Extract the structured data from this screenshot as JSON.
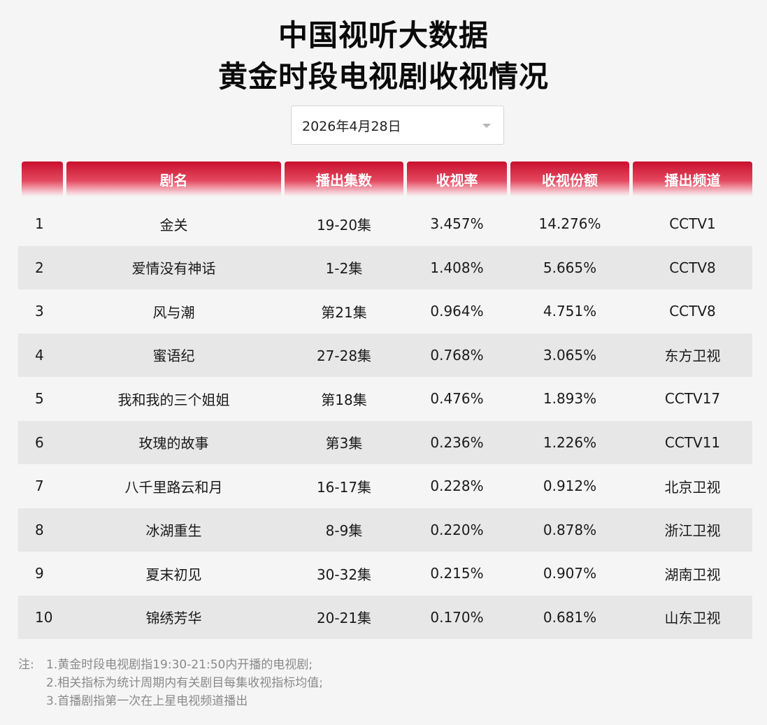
{
  "header": {
    "title_line1": "中国视听大数据",
    "title_line2": "黄金时段电视剧收视情况"
  },
  "date_select": {
    "value": "2026年4月28日"
  },
  "table": {
    "columns": [
      "",
      "剧名",
      "播出集数",
      "收视率",
      "收视份额",
      "播出频道"
    ],
    "rows": [
      {
        "rank": "1",
        "name": "金关",
        "episodes": "19-20集",
        "rating": "3.457%",
        "share": "14.276%",
        "channel": "CCTV1"
      },
      {
        "rank": "2",
        "name": "爱情没有神话",
        "episodes": "1-2集",
        "rating": "1.408%",
        "share": "5.665%",
        "channel": "CCTV8"
      },
      {
        "rank": "3",
        "name": "风与潮",
        "episodes": "第21集",
        "rating": "0.964%",
        "share": "4.751%",
        "channel": "CCTV8"
      },
      {
        "rank": "4",
        "name": "蜜语纪",
        "episodes": "27-28集",
        "rating": "0.768%",
        "share": "3.065%",
        "channel": "东方卫视"
      },
      {
        "rank": "5",
        "name": "我和我的三个姐姐",
        "episodes": "第18集",
        "rating": "0.476%",
        "share": "1.893%",
        "channel": "CCTV17"
      },
      {
        "rank": "6",
        "name": "玫瑰的故事",
        "episodes": "第3集",
        "rating": "0.236%",
        "share": "1.226%",
        "channel": "CCTV11"
      },
      {
        "rank": "7",
        "name": "八千里路云和月",
        "episodes": "16-17集",
        "rating": "0.228%",
        "share": "0.912%",
        "channel": "北京卫视"
      },
      {
        "rank": "8",
        "name": "冰湖重生",
        "episodes": "8-9集",
        "rating": "0.220%",
        "share": "0.878%",
        "channel": "浙江卫视"
      },
      {
        "rank": "9",
        "name": "夏末初见",
        "episodes": "30-32集",
        "rating": "0.215%",
        "share": "0.907%",
        "channel": "湖南卫视"
      },
      {
        "rank": "10",
        "name": "锦绣芳华",
        "episodes": "20-21集",
        "rating": "0.170%",
        "share": "0.681%",
        "channel": "山东卫视"
      }
    ]
  },
  "notes": {
    "prefix": "注:",
    "lines": [
      "1.黄金时段电视剧指19:30-21:50内开播的电视剧;",
      "2.相关指标为统计周期内有关剧目每集收视指标均值;",
      "3.首播剧指第一次在上星电视频道播出"
    ]
  },
  "colors": {
    "header_red": "#c8102e",
    "alt_row": "#e7e7e7",
    "background": "#f5f5f5"
  }
}
